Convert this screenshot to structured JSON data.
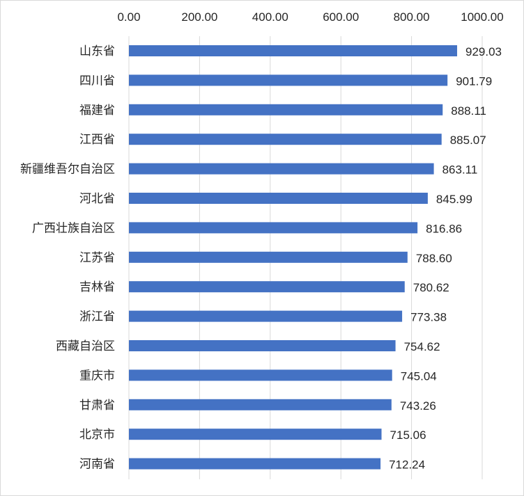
{
  "chart_data": {
    "type": "bar",
    "orientation": "horizontal",
    "title": "",
    "xlabel": "",
    "ylabel": "",
    "xlim": [
      0,
      1000
    ],
    "ticks": [
      "0.00",
      "200.00",
      "400.00",
      "600.00",
      "800.00",
      "1000.00"
    ],
    "tick_values": [
      0,
      200,
      400,
      600,
      800,
      1000
    ],
    "axis_position": "top",
    "grid": true,
    "legend": "none",
    "bar_color": "#4472c4",
    "categories": [
      "山东省",
      "四川省",
      "福建省",
      "江西省",
      "新疆维吾尔自治区",
      "河北省",
      "广西壮族自治区",
      "江苏省",
      "吉林省",
      "浙江省",
      "西藏自治区",
      "重庆市",
      "甘肃省",
      "北京市",
      "河南省"
    ],
    "values": [
      929.03,
      901.79,
      888.11,
      885.07,
      863.11,
      845.99,
      816.86,
      788.6,
      780.62,
      773.38,
      754.62,
      745.04,
      743.26,
      715.06,
      712.24
    ],
    "value_labels": [
      "929.03",
      "901.79",
      "888.11",
      "885.07",
      "863.11",
      "845.99",
      "816.86",
      "788.60",
      "780.62",
      "773.38",
      "754.62",
      "745.04",
      "743.26",
      "715.06",
      "712.24"
    ]
  }
}
